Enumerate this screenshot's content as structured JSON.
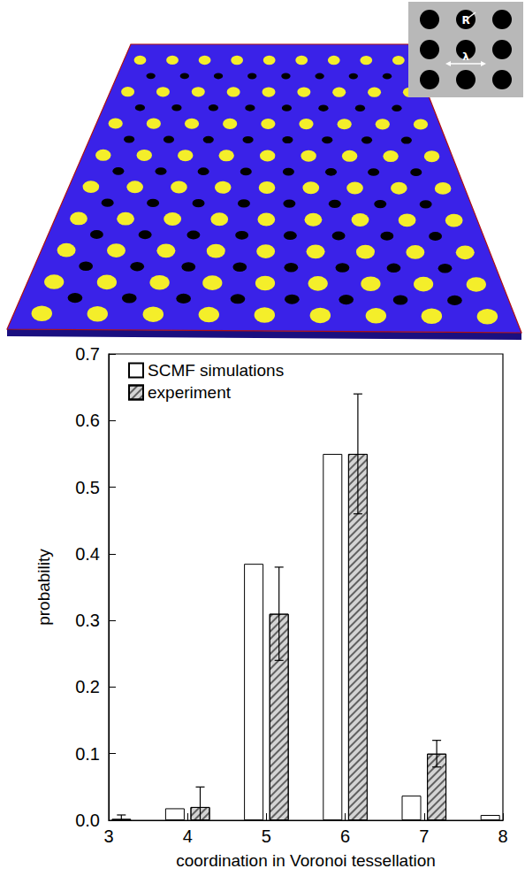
{
  "inset": {
    "radius_label": "R",
    "spacing_label": "λ"
  },
  "chart_data": {
    "type": "bar",
    "x_label": "coordination in Voronoi tessellation",
    "y_label": "probability",
    "x": [
      3,
      4,
      5,
      6,
      7,
      8
    ],
    "series": [
      {
        "name": "SCMF simulations",
        "color": "#ffffff",
        "values": [
          null,
          0.018,
          0.385,
          0.55,
          0.037,
          0.008
        ]
      },
      {
        "name": "experiment",
        "color": "#d4d4d4",
        "values": [
          0.002,
          0.02,
          0.31,
          0.55,
          0.1,
          null
        ],
        "errors": [
          0.006,
          0.03,
          0.07,
          0.09,
          0.02,
          null
        ]
      }
    ],
    "xlim": [
      3,
      8
    ],
    "xticks": [
      3,
      4,
      5,
      6,
      7,
      8
    ],
    "ylim": [
      0,
      0.7
    ],
    "yticks": [
      {
        "value": 0,
        "label": "0.0"
      },
      {
        "value": 0.1,
        "label": "0.1"
      },
      {
        "value": 0.2,
        "label": "0.2"
      },
      {
        "value": 0.3,
        "label": "0.3"
      },
      {
        "value": 0.4,
        "label": "0.4"
      },
      {
        "value": 0.5,
        "label": "0.5"
      },
      {
        "value": 0.6,
        "label": "0.6"
      },
      {
        "value": 0.7,
        "label": "0.7"
      }
    ],
    "legend": "upper left",
    "grid": false
  }
}
